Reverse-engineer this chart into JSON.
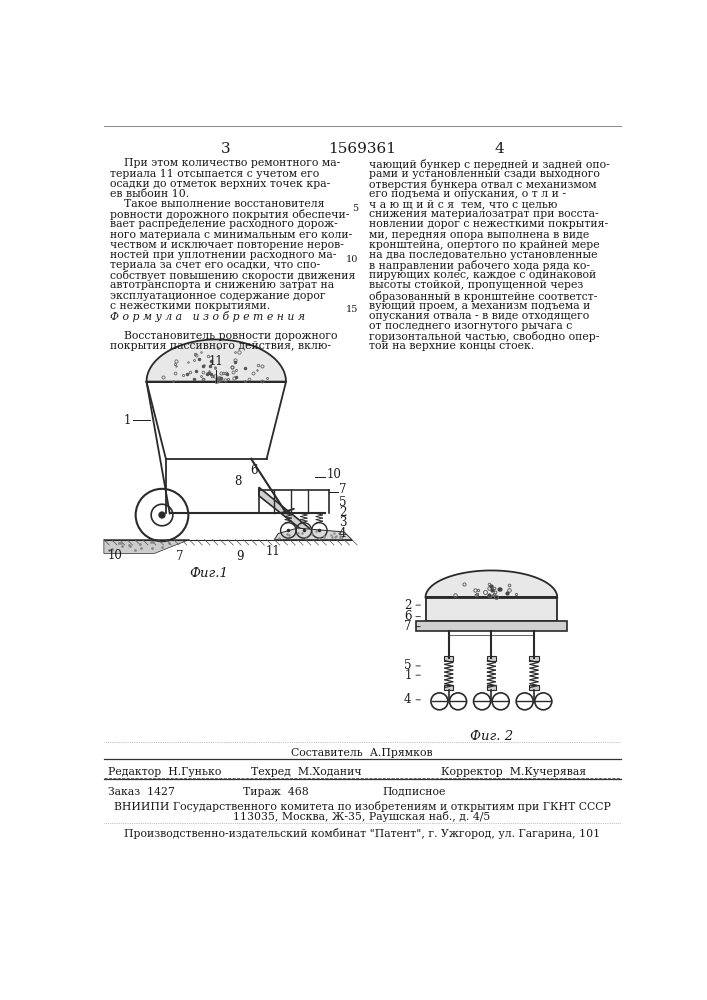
{
  "page_number_left": "3",
  "page_number_center": "1569361",
  "page_number_right": "4",
  "bg_color": "#ffffff",
  "text_color": "#1a1a1a",
  "col1_text": [
    "    При этом количество ремонтного ма-",
    "териала 11 отсыпается с учетом его",
    "осадки до отметок верхних точек кра-",
    "ев выбоин 10.",
    "    Такое выполнение восстановителя",
    "ровности дорожного покрытия обеспечи-",
    "вает распределение расходного дорож-",
    "ного материала с минимальным его коли-",
    "чеством и исключает повторение неров-",
    "ностей при уплотнении расходного ма-",
    "териала за счет его осадки, что спо-",
    "собствует повышению скорости движения",
    "автотранспорта и снижению затрат на",
    "эксплуатационное содержание дорог",
    "с нежесткими покрытиями.",
    "Ф о р м у л а   и з о б р е т е н и я",
    "",
    "    Восстановитель ровности дорожного",
    "покрытия пассивного действия, вклю-"
  ],
  "col2_text": [
    "чающий бункер с передней и задней опо-",
    "рами и установленный сзади выходного",
    "отверстия бункера отвал с механизмом",
    "его подъема и опускания, о т л и -",
    "ч а ю щ и й с я  тем, что с целью",
    "снижения материалозатрат при восста-",
    "новлении дорог с нежесткими покрытия-",
    "ми, передняя опора выполнена в виде",
    "кронштейна, опертого по крайней мере",
    "на два последовательно установленные",
    "в направлении рабочего хода ряда ко-",
    "пирующих колес, каждое с одинаковой",
    "высоты стойкой, пропущенной через",
    "образованный в кронштейне соответст-",
    "вующий проем, а механизм подъема и",
    "опускания отвала - в виде отходящего",
    "от последнего изогнутого рычага с",
    "горизонтальной частью, свободно опер-",
    "той на верхние концы стоек."
  ],
  "footer_editor": "Редактор  Н.Гунько",
  "footer_composer": "Составитель  А.Прямков",
  "footer_techred": "Техред  М.Ходанич",
  "footer_corrector": "Корректор  М.Кучерявая",
  "footer_order": "Заказ  1427",
  "footer_tirazh": "Тираж  468",
  "footer_podpisnoe": "Подписное",
  "footer_vniip1": "ВНИИПИ Государственного комитета по изобретениям и открытиям при ГКНТ СССР",
  "footer_vniip2": "113035, Москва, Ж-35, Раушская наб., д. 4/5",
  "footer_patent": "Производственно-издательский комбинат \"Патент\", г. Ужгород, ул. Гагарина, 101",
  "fig1_caption": "Фиг.1",
  "fig2_caption": "Фиг. 2",
  "line5_number": "5"
}
